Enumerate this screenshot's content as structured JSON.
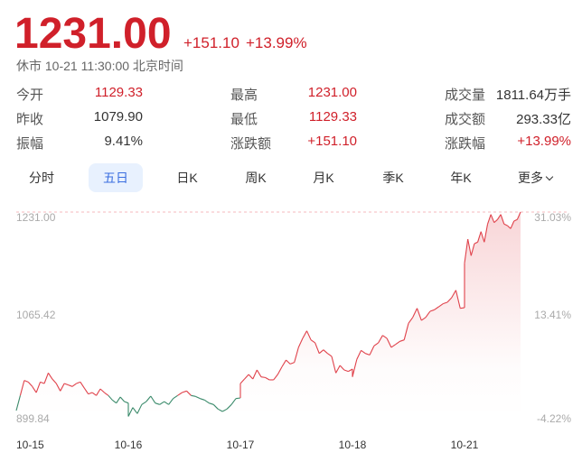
{
  "quote": {
    "price": "1231.00",
    "change": "+151.10",
    "change_pct": "+13.99%",
    "status": "休市 10-21 11:30:00 北京时间"
  },
  "stats": [
    {
      "label": "今开",
      "value": "1129.33",
      "tone": "red"
    },
    {
      "label": "最高",
      "value": "1231.00",
      "tone": "red"
    },
    {
      "label": "成交量",
      "value": "1811.64万手",
      "tone": "dark"
    },
    {
      "label": "昨收",
      "value": "1079.90",
      "tone": "dark"
    },
    {
      "label": "最低",
      "value": "1129.33",
      "tone": "red"
    },
    {
      "label": "成交额",
      "value": "293.33亿",
      "tone": "dark"
    },
    {
      "label": "振幅",
      "value": "9.41%",
      "tone": "dark"
    },
    {
      "label": "涨跌额",
      "value": "+151.10",
      "tone": "red"
    },
    {
      "label": "涨跌幅",
      "value": "+13.99%",
      "tone": "red"
    }
  ],
  "tabs": [
    {
      "label": "分时",
      "active": false
    },
    {
      "label": "五日",
      "active": true
    },
    {
      "label": "日K",
      "active": false
    },
    {
      "label": "周K",
      "active": false
    },
    {
      "label": "月K",
      "active": false
    },
    {
      "label": "季K",
      "active": false
    },
    {
      "label": "年K",
      "active": false
    },
    {
      "label": "更多",
      "active": false,
      "icon": "chevron-down-icon"
    }
  ],
  "colors": {
    "up": "#d0202a",
    "line_up": "#e0424b",
    "line_down": "#3a8a6a",
    "accent": "#3b6fe0"
  },
  "chart_data": {
    "type": "line",
    "title": "",
    "ylim": [
      899.84,
      1231.0
    ],
    "y_ticks": [
      "1231.00",
      "1065.42",
      "899.84"
    ],
    "y_right_ticks": [
      "31.03%",
      "13.41%",
      "-4.22%"
    ],
    "x_ticks": [
      "10-15",
      "10-16",
      "10-17",
      "10-18",
      "10-21"
    ],
    "high_line": 1231.0,
    "grid": false,
    "days": [
      {
        "date": "10-15",
        "portion": 1,
        "prices": [
          910.0,
          934.4,
          958.7,
          956.2,
          949.0,
          939.2,
          956.2,
          953.8,
          970.8,
          961.1,
          953.8,
          941.7,
          953.8,
          951.4,
          949.0,
          953.8,
          956.2,
          946.5,
          936.8,
          939.2,
          934.4,
          945.1,
          939.2,
          934.4,
          927.1,
          922.2,
          932.0,
          924.6,
          922.2
        ]
      },
      {
        "date": "10-16",
        "portion": 1,
        "prices": [
          900.5,
          914.9,
          905.2,
          919.8,
          924.6,
          933.4,
          922.2,
          919.8,
          924.6,
          919.8,
          929.5,
          934.4,
          939.2,
          941.7,
          934.4,
          932.9,
          929.5,
          927.1,
          922.2,
          919.8,
          912.5,
          908.6,
          912.5,
          919.8,
          929.5,
          930.5
        ]
      },
      {
        "date": "10-17",
        "portion": 1,
        "prices": [
          953.8,
          961.1,
          968.4,
          961.1,
          975.7,
          964.5,
          963.5,
          959.7,
          959.7,
          968.4,
          980.6,
          991.7,
          985.4,
          987.9,
          1012.2,
          1026.8,
          1038.9,
          1024.3,
          1019.5,
          1002.4,
          1008.3,
          1002.4,
          997.6,
          970.8,
          983.0,
          975.7,
          973.3,
          977.2
        ]
      },
      {
        "date": "10-18",
        "portion": 1,
        "prices": [
          964.5,
          992.7,
          1007.3,
          1002.4,
          1000.0,
          1014.6,
          1019.5,
          1031.6,
          1026.8,
          1012.2,
          1017.0,
          1021.9,
          1024.3,
          1051.1,
          1060.8,
          1075.4,
          1055.9,
          1060.8,
          1070.5,
          1073.0,
          1077.8,
          1082.7,
          1085.1,
          1092.4,
          1104.6,
          1075.4,
          1076.4
        ]
      },
      {
        "date": "10-21",
        "portion": 0.5,
        "prices": [
          1148.3,
          1187.2,
          1160.5,
          1180.0,
          1182.4,
          1199.4,
          1182.4,
          1211.6,
          1227.1,
          1214.0,
          1218.9,
          1227.1,
          1211.6,
          1209.1,
          1204.3,
          1216.4,
          1218.9,
          1231.0
        ]
      }
    ]
  }
}
